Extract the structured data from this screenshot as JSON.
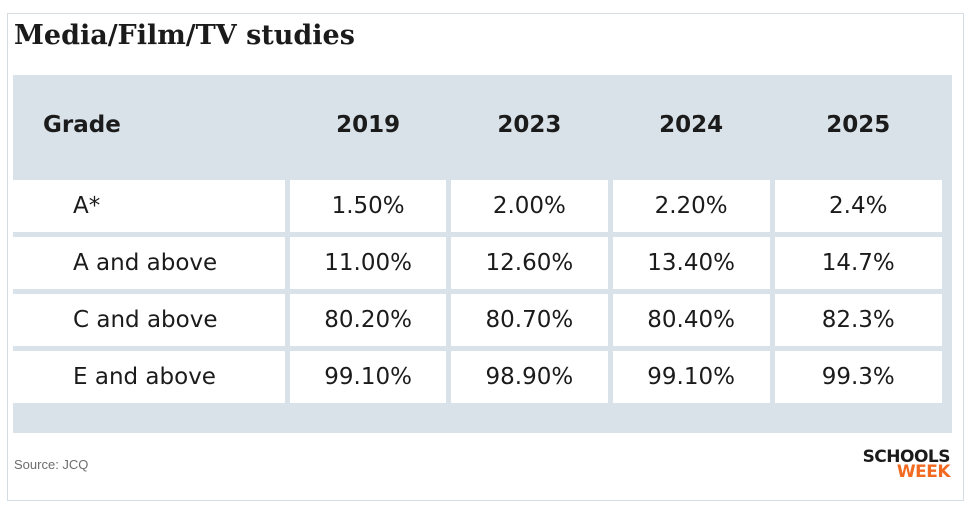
{
  "title": "Media/Film/TV studies",
  "source": "Source: JCQ",
  "logo": {
    "line1": "SCHOOLS",
    "line2": "WEEK"
  },
  "colors": {
    "header_bg": "#d8e2e8",
    "logo_accent": "#f26a21"
  },
  "chart_data": {
    "type": "table",
    "title": "Media/Film/TV studies",
    "columns": [
      "Grade",
      "2019",
      "2023",
      "2024",
      "2025"
    ],
    "rows": [
      [
        "A*",
        "1.50%",
        "2.00%",
        "2.20%",
        "2.4%"
      ],
      [
        "A and above",
        "11.00%",
        "12.60%",
        "13.40%",
        "14.7%"
      ],
      [
        "C and above",
        "80.20%",
        "80.70%",
        "80.40%",
        "82.3%"
      ],
      [
        "E and above",
        "99.10%",
        "98.90%",
        "99.10%",
        "99.3%"
      ]
    ]
  }
}
